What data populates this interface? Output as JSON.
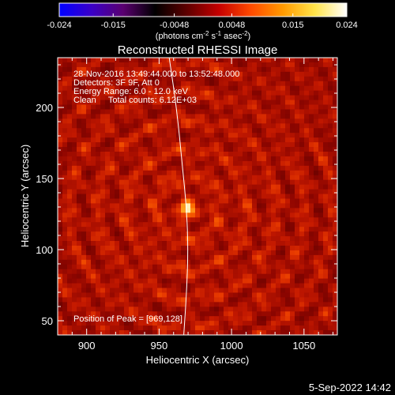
{
  "colorbar": {
    "ticks": [
      "-0.024",
      "-0.015",
      "-0.0048",
      "0.0048",
      "0.015",
      "0.024"
    ],
    "tick_values": [
      -0.024,
      -0.015,
      -0.0048,
      0.0048,
      0.015,
      0.024
    ],
    "range": [
      -0.024,
      0.024
    ],
    "colormap": [
      "#0000ff",
      "#3a00c8",
      "#5a0070",
      "#000000",
      "#5e0000",
      "#c60000",
      "#ff4a00",
      "#ff9a00",
      "#ffe44a",
      "#ffffff"
    ],
    "label_main": "(photons cm",
    "label_sup1": "-2",
    "label_mid1": " s",
    "label_sup2": "-1",
    "label_mid2": " asec",
    "label_sup3": "-2",
    "label_end": ")"
  },
  "chart_data": {
    "type": "heatmap",
    "title": "Reconstructed RHESSI Image",
    "xlabel": "Heliocentric X (arcsec)",
    "ylabel": "Heliocentric Y (arcsec)",
    "xlim": [
      880,
      1073
    ],
    "ylim": [
      40,
      235
    ],
    "x_ticks": [
      900,
      950,
      1000,
      1050
    ],
    "y_ticks": [
      50,
      100,
      150,
      200
    ],
    "annotations": [
      "28-Nov-2016 13:49:44.000 to 13:52:48.000",
      "Detectors: 3F 9F, Att 0",
      "Energy Range: 6.0 - 12.0 keV",
      "Clean     Total counts: 6.12E+03"
    ],
    "peak_text": "Position of Peak = [969,128]",
    "peak": {
      "x": 969,
      "y": 128
    },
    "limb_curve": [
      [
        957,
        235
      ],
      [
        962,
        200
      ],
      [
        966,
        160
      ],
      [
        969,
        128
      ],
      [
        970,
        100
      ],
      [
        969,
        70
      ],
      [
        967,
        40
      ]
    ]
  },
  "footer": {
    "date": "5-Sep-2022 14:42"
  }
}
